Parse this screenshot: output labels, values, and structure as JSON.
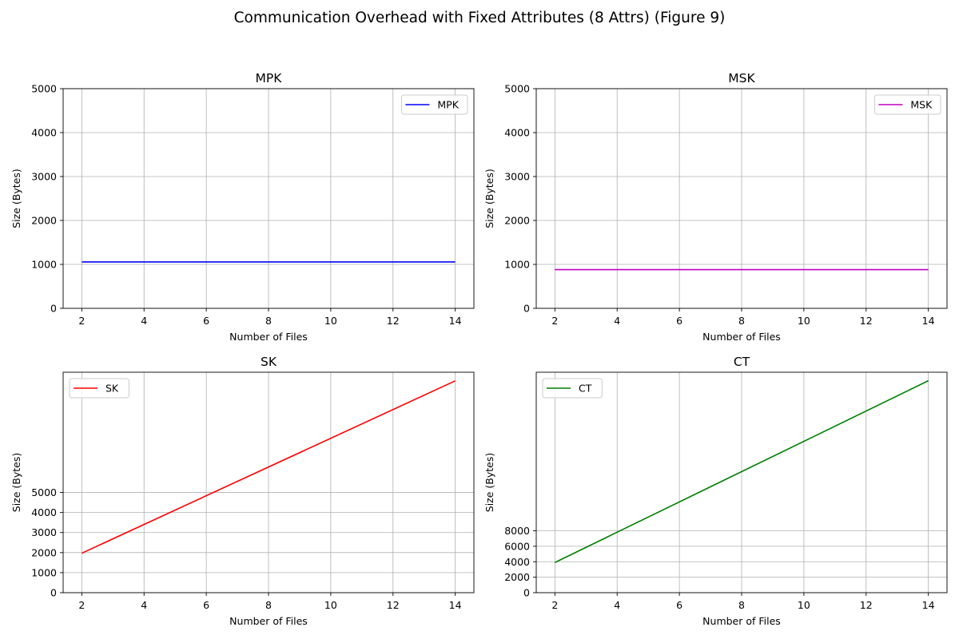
{
  "figure_title": "Communication Overhead with Fixed Attributes (8 Attrs) (Figure 9)",
  "chart_data": [
    {
      "type": "line",
      "title": "MPK",
      "xlabel": "Number of Files",
      "ylabel": "Size (Bytes)",
      "xlim": [
        1.4,
        14.6
      ],
      "ylim": [
        0,
        5000
      ],
      "xticks": [
        2,
        4,
        6,
        8,
        10,
        12,
        14
      ],
      "yticks": [
        0,
        1000,
        2000,
        3000,
        4000,
        5000
      ],
      "grid": true,
      "legend": "upper right",
      "series": [
        {
          "name": "MPK",
          "color": "#0000ff",
          "x": [
            2,
            14
          ],
          "y": [
            1056,
            1056
          ]
        }
      ]
    },
    {
      "type": "line",
      "title": "MSK",
      "xlabel": "Number of Files",
      "ylabel": "Size (Bytes)",
      "xlim": [
        1.4,
        14.6
      ],
      "ylim": [
        0,
        5000
      ],
      "xticks": [
        2,
        4,
        6,
        8,
        10,
        12,
        14
      ],
      "yticks": [
        0,
        1000,
        2000,
        3000,
        4000,
        5000
      ],
      "grid": true,
      "legend": "upper right",
      "series": [
        {
          "name": "MSK",
          "color": "#bf00bf",
          "x": [
            2,
            14
          ],
          "y": [
            880,
            880
          ]
        }
      ]
    },
    {
      "type": "line",
      "title": "SK",
      "xlabel": "Number of Files",
      "ylabel": "Size (Bytes)",
      "xlim": [
        1.4,
        14.6
      ],
      "ylim": [
        0,
        11000
      ],
      "xticks": [
        2,
        4,
        6,
        8,
        10,
        12,
        14
      ],
      "yticks": [
        0,
        1000,
        2000,
        3000,
        4000,
        5000
      ],
      "grid": true,
      "legend": "upper left",
      "series": [
        {
          "name": "SK",
          "color": "#ff0000",
          "x": [
            2,
            14
          ],
          "y": [
            1970,
            10570
          ]
        }
      ]
    },
    {
      "type": "line",
      "title": "CT",
      "xlabel": "Number of Files",
      "ylabel": "Size (Bytes)",
      "xlim": [
        1.4,
        14.6
      ],
      "ylim": [
        0,
        28500
      ],
      "xticks": [
        2,
        4,
        6,
        8,
        10,
        12,
        14
      ],
      "yticks": [
        0,
        2000,
        4000,
        6000,
        8000
      ],
      "grid": true,
      "legend": "upper left",
      "series": [
        {
          "name": "CT",
          "color": "#008000",
          "x": [
            2,
            14
          ],
          "y": [
            3900,
            27400
          ]
        }
      ]
    }
  ]
}
